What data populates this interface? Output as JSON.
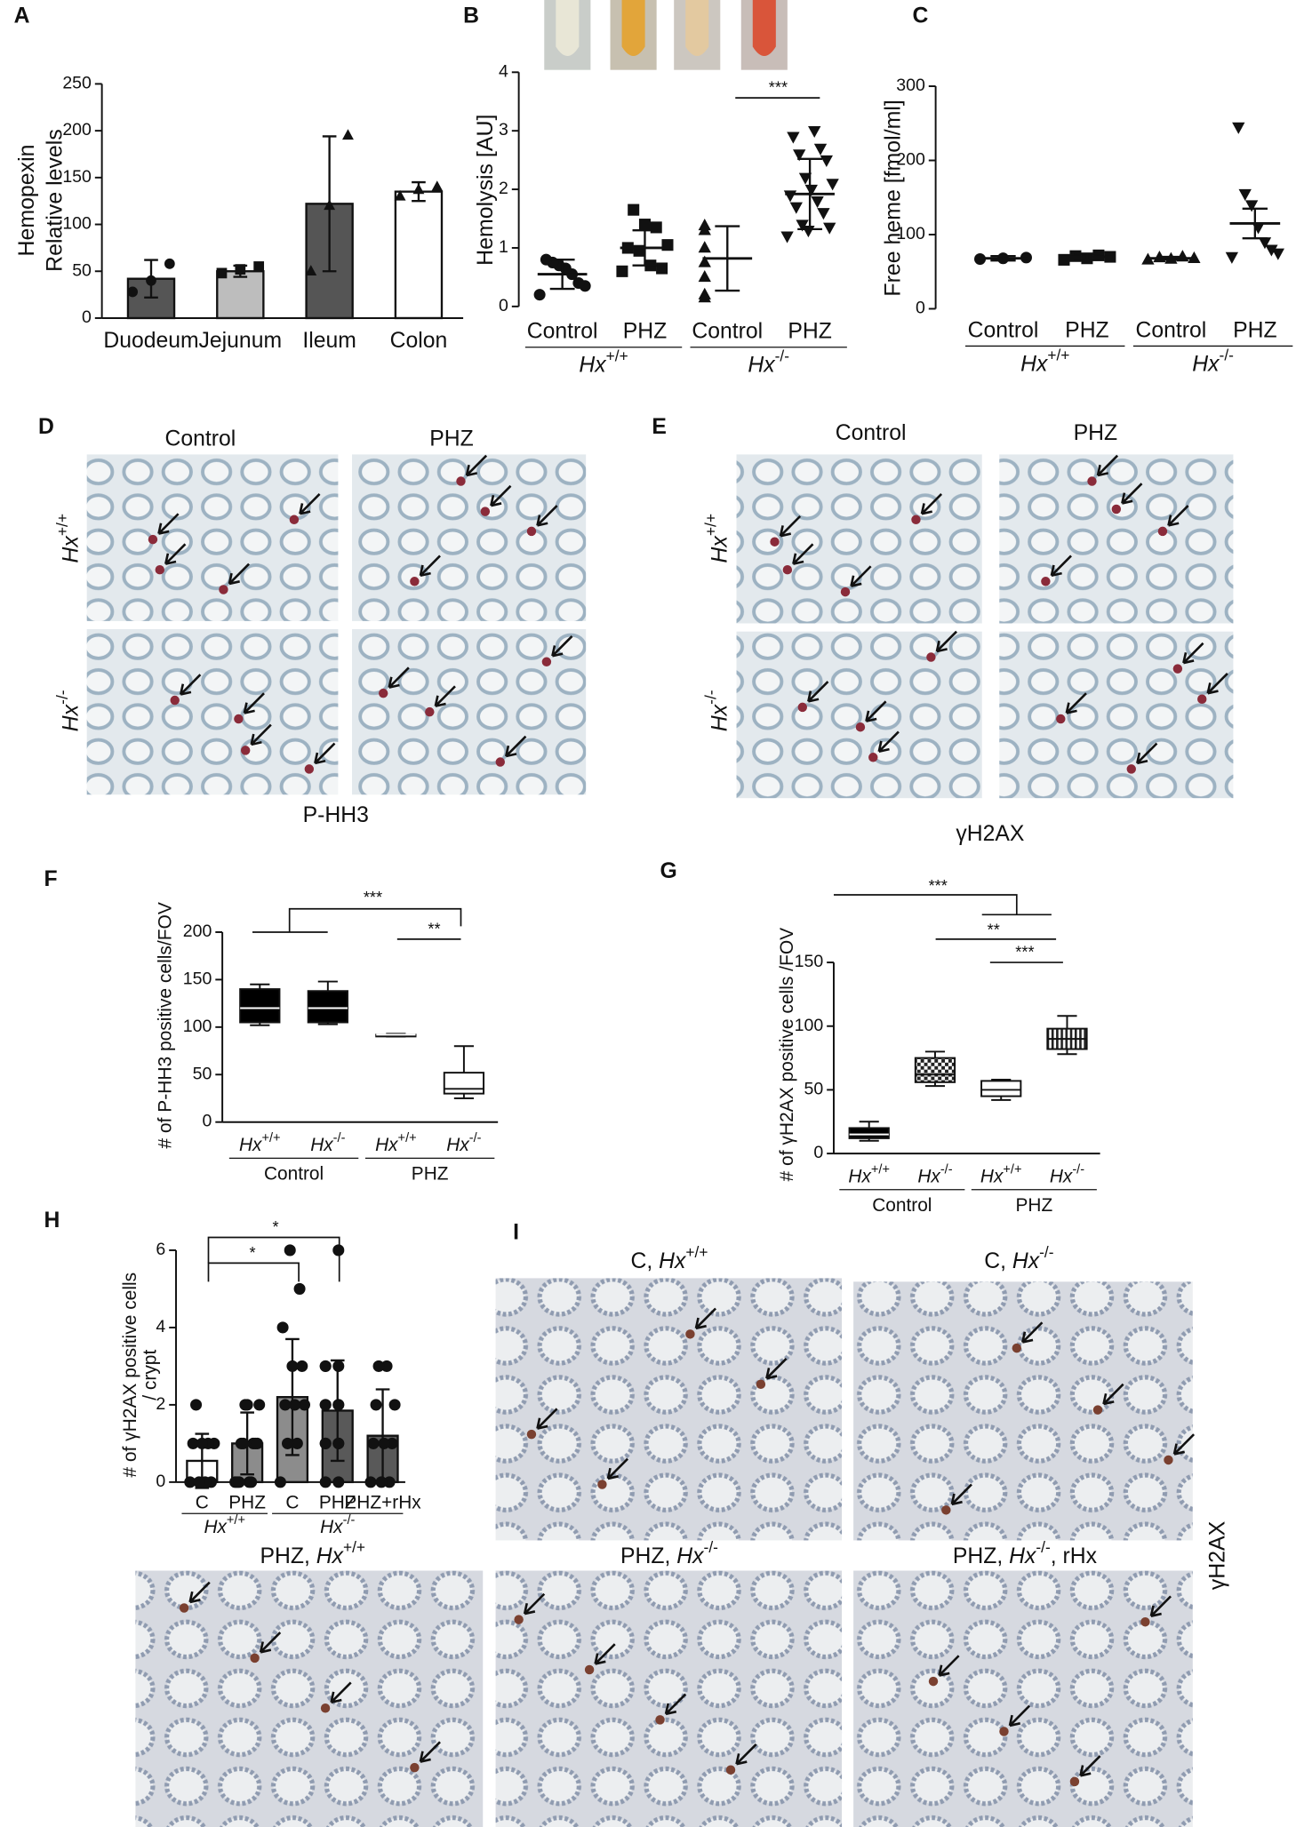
{
  "chart_data": [
    {
      "type": "bar",
      "label": "A",
      "ylabel": [
        "Hemopexin",
        "Relative levels"
      ],
      "categories": [
        "Duodeum",
        "Jejunum",
        "Ileum",
        "Colon"
      ],
      "values": [
        42,
        50,
        122,
        135
      ],
      "errors": [
        20,
        6,
        72,
        10
      ],
      "colors": [
        "#555555",
        "#bdbdbd",
        "#555555",
        "#ffffff"
      ],
      "markers": [
        "circle",
        "square",
        "triangle",
        "triangle"
      ],
      "points": [
        [
          28,
          40,
          58
        ],
        [
          48,
          52,
          55
        ],
        [
          50,
          120,
          195
        ],
        [
          130,
          137,
          140
        ]
      ],
      "ylim": [
        0,
        250
      ],
      "yticks": [
        0,
        50,
        100,
        150,
        200,
        250
      ]
    },
    {
      "type": "dot",
      "label": "B",
      "ylabel": [
        "Hemolysis [AU]"
      ],
      "categories": [
        "Control",
        "PHZ",
        "Control",
        "PHZ"
      ],
      "groups": [
        "Hx+/+",
        "Hx-/-"
      ],
      "values": [
        0.55,
        1.0,
        0.82,
        1.92
      ],
      "errors": [
        0.25,
        0.3,
        0.55,
        0.6
      ],
      "markers": [
        "circle",
        "square",
        "triangle",
        "triangle-down"
      ],
      "points": [
        [
          0.2,
          0.35,
          0.4,
          0.55,
          0.65,
          0.7,
          0.75,
          0.8
        ],
        [
          0.6,
          0.65,
          0.7,
          0.95,
          1.0,
          1.05,
          1.35,
          1.4,
          1.65
        ],
        [
          0.15,
          0.2,
          0.5,
          0.75,
          1.0,
          1.3,
          1.38
        ],
        [
          1.2,
          1.3,
          1.35,
          1.4,
          1.6,
          1.7,
          1.8,
          1.9,
          2.0,
          2.1,
          2.2,
          2.5,
          2.6,
          2.7,
          2.9,
          3.0
        ]
      ],
      "significance": [
        "***"
      ],
      "ylim": [
        0,
        4
      ],
      "yticks": [
        0,
        1,
        2,
        3,
        4
      ]
    },
    {
      "type": "dot",
      "label": "C",
      "ylabel": [
        "Free heme [fmol/ml]"
      ],
      "categories": [
        "Control",
        "PHZ",
        "Control",
        "PHZ"
      ],
      "groups": [
        "Hx+/+",
        "Hx-/-"
      ],
      "values": [
        68,
        70,
        68,
        115
      ],
      "errors": [
        3,
        4,
        2,
        20
      ],
      "markers": [
        "circle",
        "square",
        "triangle",
        "triangle-down"
      ],
      "points": [
        [
          67,
          68,
          69
        ],
        [
          66,
          68,
          70,
          71,
          72
        ],
        [
          66,
          67,
          68,
          69,
          70
        ],
        [
          70,
          75,
          80,
          90,
          110,
          140,
          155,
          245
        ]
      ],
      "significance": [],
      "ylim": [
        0,
        300
      ],
      "yticks": [
        0,
        100,
        200,
        300
      ]
    },
    {
      "type": "box",
      "label": "F",
      "ylabel": [
        "# of P-HH3 positive cells/FOV"
      ],
      "categories": [
        "Hx+/+",
        "Hx-/-",
        "Hx+/+",
        "Hx-/-"
      ],
      "groups": [
        "Control",
        "PHZ"
      ],
      "boxes": [
        {
          "min": 102,
          "q1": 105,
          "median": 120,
          "q3": 140,
          "max": 145
        },
        {
          "min": 103,
          "q1": 105,
          "median": 120,
          "q3": 138,
          "max": 148
        },
        {
          "min": 90,
          "q1": 91,
          "median": 92,
          "q3": 92,
          "max": 93
        },
        {
          "min": 25,
          "q1": 30,
          "median": 35,
          "q3": 52,
          "max": 80
        }
      ],
      "fills": [
        "black",
        "black",
        "black",
        "white"
      ],
      "significance": [
        "***",
        "**"
      ],
      "ylim": [
        0,
        200
      ],
      "yticks": [
        0,
        50,
        100,
        150,
        200
      ]
    },
    {
      "type": "box",
      "label": "G",
      "ylabel": [
        "# of γH2AX positive cells /FOV"
      ],
      "categories": [
        "Hx+/+",
        "Hx-/-",
        "Hx+/+",
        "Hx-/-"
      ],
      "groups": [
        "Control",
        "PHZ"
      ],
      "boxes": [
        {
          "min": 10,
          "q1": 12,
          "median": 15,
          "q3": 20,
          "max": 25
        },
        {
          "min": 53,
          "q1": 56,
          "median": 62,
          "q3": 75,
          "max": 80
        },
        {
          "min": 42,
          "q1": 45,
          "median": 50,
          "q3": 57,
          "max": 58
        },
        {
          "min": 78,
          "q1": 82,
          "median": 90,
          "q3": 98,
          "max": 108
        }
      ],
      "fills": [
        "black",
        "checker",
        "white",
        "stripe"
      ],
      "significance": [
        "***",
        "**",
        "***"
      ],
      "ylim": [
        0,
        150
      ],
      "yticks": [
        0,
        50,
        100,
        150
      ]
    },
    {
      "type": "bar",
      "label": "H",
      "ylabel": [
        "# of γH2AX positive cells",
        "/ crypt"
      ],
      "categories": [
        "C",
        "PHZ",
        "C",
        "PHZ",
        "PHZ+rHx"
      ],
      "groups": [
        "Hx+/+",
        "Hx-/-"
      ],
      "values": [
        0.55,
        1.0,
        2.2,
        1.85,
        1.2
      ],
      "errors": [
        0.7,
        0.8,
        1.5,
        1.3,
        1.2
      ],
      "colors": [
        "#ffffff",
        "#8c8c8c",
        "#8c8c8c",
        "#595959",
        "#595959"
      ],
      "markers": [
        "circle",
        "circle",
        "circle",
        "circle",
        "circle"
      ],
      "points": [
        [
          0,
          0,
          0,
          0,
          1,
          1,
          1,
          1,
          2
        ],
        [
          0,
          0,
          0,
          0,
          0,
          1,
          1,
          1,
          1,
          1,
          2,
          2,
          2
        ],
        [
          0,
          1,
          1,
          2,
          2,
          2,
          3,
          3,
          4,
          5,
          6
        ],
        [
          0,
          0,
          1,
          1,
          1,
          1,
          2,
          2,
          2,
          2,
          3,
          3,
          3,
          6
        ],
        [
          0,
          0,
          0,
          1,
          1,
          1,
          2,
          2,
          3,
          3
        ]
      ],
      "significance": [
        "*",
        "*"
      ],
      "ylim": [
        0,
        6
      ],
      "yticks": [
        0,
        2,
        4,
        6
      ]
    }
  ],
  "panels": {
    "D": {
      "label": "D",
      "columns": [
        "Control",
        "PHZ"
      ],
      "rows": [
        "Hx+/+",
        "Hx-/-"
      ],
      "caption": "P-HH3"
    },
    "E": {
      "label": "E",
      "columns": [
        "Control",
        "PHZ"
      ],
      "rows": [
        "Hx+/+",
        "Hx-/-"
      ],
      "caption": "γH2AX"
    },
    "I": {
      "label": "I",
      "titles": [
        "C, Hx+/+",
        "C, Hx-/-",
        "PHZ, Hx+/+",
        "PHZ, Hx-/-",
        "PHZ, Hx-/-, rHx"
      ],
      "side": "γH2AX"
    }
  }
}
